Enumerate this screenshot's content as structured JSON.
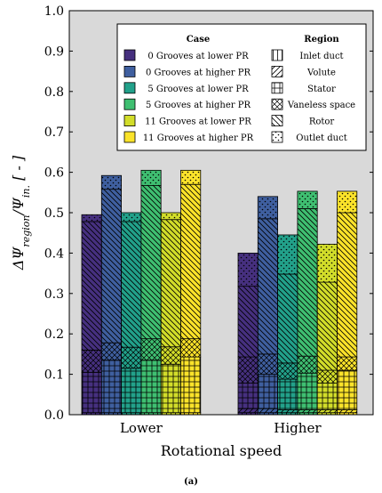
{
  "chart_data": {
    "type": "bar",
    "subtype": "stacked-grouped",
    "xlabel": "Rotational speed",
    "ylabel": "ΔΨ_region/Ψ_in. [ - ]",
    "ylim": [
      0,
      1.0
    ],
    "yticks": [
      "0.0",
      "0.1",
      "0.2",
      "0.3",
      "0.4",
      "0.5",
      "0.6",
      "0.7",
      "0.8",
      "0.9",
      "1.0"
    ],
    "grid": false,
    "background_color": "#d9d9d9",
    "categories": [
      "Lower",
      "Higher"
    ],
    "legend_placement": "top-right",
    "case_legend_title": "Case",
    "region_legend_title": "Region",
    "cases": [
      {
        "name": "0 Grooves at lower PR",
        "color": "#46307f"
      },
      {
        "name": "0 Grooves at higher PR",
        "color": "#3f5f9f"
      },
      {
        "name": "5 Grooves at lower PR",
        "color": "#22a18a"
      },
      {
        "name": "5 Grooves at higher PR",
        "color": "#3fbf71"
      },
      {
        "name": "11 Grooves at lower PR",
        "color": "#d2dd2a"
      },
      {
        "name": "11 Grooves at higher PR",
        "color": "#fbe32a"
      }
    ],
    "regions": [
      {
        "name": "Inlet duct",
        "pattern": "vertical"
      },
      {
        "name": "Volute",
        "pattern": "diag-up"
      },
      {
        "name": "Stator",
        "pattern": "grid"
      },
      {
        "name": "Vaneless space",
        "pattern": "crosshatch"
      },
      {
        "name": "Rotor",
        "pattern": "diag-down"
      },
      {
        "name": "Outlet duct",
        "pattern": "dots"
      }
    ],
    "series": [
      {
        "category": "Lower",
        "case": "0 Grooves at lower PR",
        "cumulative": [
          0.005,
          0.005,
          0.105,
          0.16,
          0.478,
          0.495
        ]
      },
      {
        "category": "Lower",
        "case": "0 Grooves at higher PR",
        "cumulative": [
          0.005,
          0.005,
          0.135,
          0.178,
          0.558,
          0.592
        ]
      },
      {
        "category": "Lower",
        "case": "5 Grooves at lower PR",
        "cumulative": [
          0.005,
          0.005,
          0.115,
          0.167,
          0.478,
          0.5
        ]
      },
      {
        "category": "Lower",
        "case": "5 Grooves at higher PR",
        "cumulative": [
          0.005,
          0.005,
          0.135,
          0.188,
          0.567,
          0.605
        ]
      },
      {
        "category": "Lower",
        "case": "11 Grooves at lower PR",
        "cumulative": [
          0.005,
          0.005,
          0.125,
          0.168,
          0.483,
          0.5
        ]
      },
      {
        "category": "Lower",
        "case": "11 Grooves at higher PR",
        "cumulative": [
          0.005,
          0.005,
          0.143,
          0.188,
          0.57,
          0.605
        ]
      },
      {
        "category": "Higher",
        "case": "0 Grooves at lower PR",
        "cumulative": [
          0.005,
          0.015,
          0.078,
          0.143,
          0.318,
          0.4
        ]
      },
      {
        "category": "Higher",
        "case": "0 Grooves at higher PR",
        "cumulative": [
          0.005,
          0.015,
          0.1,
          0.15,
          0.485,
          0.54
        ]
      },
      {
        "category": "Higher",
        "case": "5 Grooves at lower PR",
        "cumulative": [
          0.005,
          0.012,
          0.088,
          0.128,
          0.348,
          0.445
        ]
      },
      {
        "category": "Higher",
        "case": "5 Grooves at higher PR",
        "cumulative": [
          0.005,
          0.012,
          0.103,
          0.145,
          0.51,
          0.553
        ]
      },
      {
        "category": "Higher",
        "case": "11 Grooves at lower PR",
        "cumulative": [
          0.005,
          0.012,
          0.078,
          0.11,
          0.328,
          0.422
        ]
      },
      {
        "category": "Higher",
        "case": "11 Grooves at higher PR",
        "cumulative": [
          0.005,
          0.012,
          0.11,
          0.143,
          0.5,
          0.553
        ]
      }
    ]
  },
  "caption": "(a)"
}
